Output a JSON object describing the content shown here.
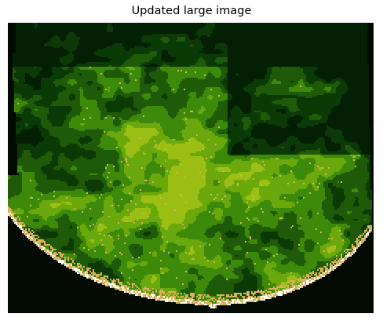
{
  "figure": {
    "title": "Updated large image"
  },
  "palette": {
    "background": "#020a02",
    "deep_forest": "#032003",
    "dark_forest": "#0b3a06",
    "forest": "#1f5a08",
    "green": "#3d8a0a",
    "bright_green": "#6aa80c",
    "yellow_green": "#9bbf14",
    "tan": "#d9b25a",
    "white": "#ffffff"
  }
}
